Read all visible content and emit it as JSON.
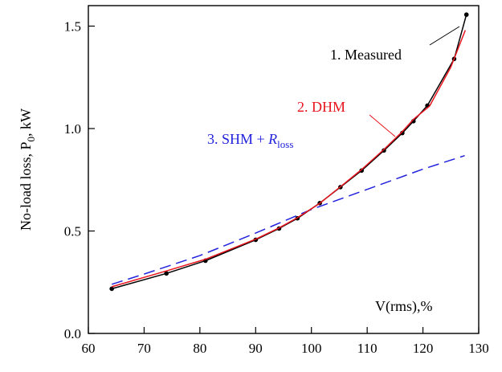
{
  "chart_data": {
    "type": "line",
    "xlabel": "V(rms),%",
    "ylabel": "No-load loss, P",
    "ylabel_sub": "0",
    "ylabel_unit": ", kW",
    "xlim": [
      60,
      130
    ],
    "ylim": [
      0.0,
      1.6
    ],
    "xticks": [
      60,
      70,
      80,
      90,
      100,
      110,
      120,
      130
    ],
    "xtick_labels": [
      "60",
      "70",
      "80",
      "90",
      "100",
      "110",
      "120",
      "130"
    ],
    "yticks": [
      0.0,
      0.5,
      1.0,
      1.5
    ],
    "ytick_labels": [
      "0.0",
      "0.5",
      "1.0",
      "1.5"
    ],
    "grid": false,
    "series": [
      {
        "name": "1.  Measured",
        "color": "#000000",
        "style": "solid-markers",
        "x": [
          64.2,
          74.0,
          81.0,
          90.0,
          94.2,
          97.5,
          101.5,
          105.2,
          109.0,
          113.0,
          116.3,
          118.3,
          120.8,
          125.6,
          127.8
        ],
        "y": [
          0.218,
          0.293,
          0.355,
          0.457,
          0.512,
          0.562,
          0.636,
          0.714,
          0.795,
          0.893,
          0.978,
          1.036,
          1.112,
          1.34,
          1.556
        ]
      },
      {
        "name": "2.  DHM",
        "color": "#e8141e",
        "style": "solid",
        "x": [
          64.2,
          74.0,
          81.0,
          90.0,
          94.2,
          97.5,
          101.5,
          105.2,
          109.0,
          113.0,
          116.3,
          118.3,
          121.2,
          125.0,
          127.6
        ],
        "y": [
          0.228,
          0.305,
          0.362,
          0.46,
          0.515,
          0.565,
          0.635,
          0.716,
          0.8,
          0.898,
          0.985,
          1.045,
          1.11,
          1.3,
          1.48
        ]
      },
      {
        "name": "3.  SHM + ",
        "name_italic": "R",
        "name_sub": "loss",
        "color": "#2222dd",
        "style": "dashed",
        "x": [
          64.2,
          70,
          80,
          90,
          100,
          110,
          120,
          127.5
        ],
        "y": [
          0.24,
          0.29,
          0.38,
          0.49,
          0.605,
          0.703,
          0.802,
          0.868
        ]
      }
    ]
  }
}
